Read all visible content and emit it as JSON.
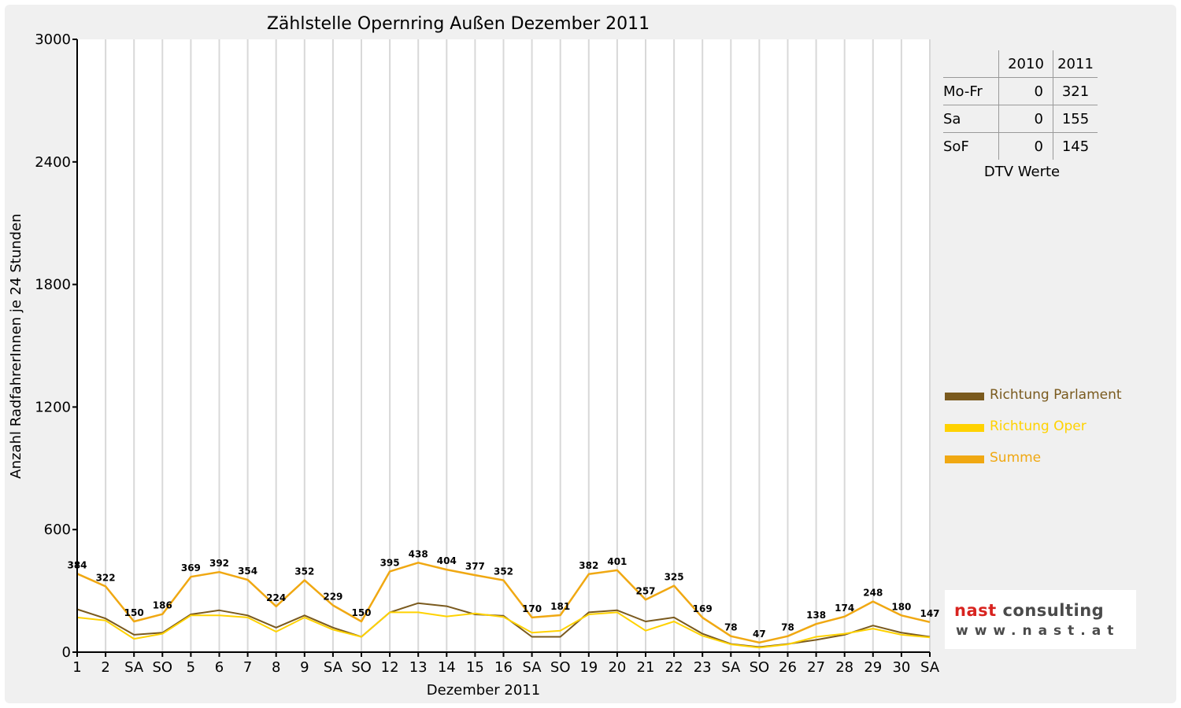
{
  "chart_data": {
    "type": "line",
    "title": "Zählstelle Opernring Außen Dezember 2011",
    "xlabel": "Dezember 2011",
    "ylabel": "Anzahl RadfahrerInnen je 24 Stunden",
    "ylim": [
      0,
      3000
    ],
    "yticks": [
      "0",
      "600",
      "1200",
      "1800",
      "2400",
      "3000"
    ],
    "grid": true,
    "legend_position": "right",
    "categories": [
      "1",
      "2",
      "SA",
      "SO",
      "5",
      "6",
      "7",
      "8",
      "9",
      "SA",
      "SO",
      "12",
      "13",
      "14",
      "15",
      "16",
      "SA",
      "SO",
      "19",
      "20",
      "21",
      "22",
      "23",
      "SA",
      "SO",
      "26",
      "27",
      "28",
      "29",
      "30",
      "SA"
    ],
    "holiday_flags": [
      false,
      false,
      false,
      true,
      false,
      false,
      false,
      true,
      false,
      false,
      true,
      false,
      false,
      false,
      false,
      false,
      false,
      true,
      false,
      false,
      false,
      false,
      false,
      false,
      true,
      true,
      false,
      false,
      false,
      false,
      false
    ],
    "series": [
      {
        "name": "Richtung Parlament",
        "color": "#7a5a1e",
        "values": [
          210,
          165,
          85,
          95,
          185,
          205,
          180,
          120,
          180,
          120,
          75,
          195,
          240,
          225,
          185,
          178,
          75,
          75,
          195,
          205,
          150,
          170,
          90,
          40,
          25,
          40,
          60,
          85,
          130,
          95,
          75
        ]
      },
      {
        "name": "Richtung Oper",
        "color": "#ffd200",
        "values": [
          170,
          155,
          65,
          90,
          180,
          180,
          170,
          100,
          170,
          110,
          75,
          195,
          195,
          175,
          190,
          172,
          95,
          105,
          185,
          195,
          105,
          150,
          80,
          38,
          22,
          38,
          75,
          90,
          115,
          85,
          72
        ]
      },
      {
        "name": "Summe",
        "color": "#f0a812",
        "values": [
          384,
          322,
          150,
          186,
          369,
          392,
          354,
          224,
          352,
          229,
          150,
          395,
          438,
          404,
          377,
          352,
          170,
          181,
          382,
          401,
          257,
          325,
          169,
          78,
          47,
          78,
          138,
          174,
          248,
          180,
          147
        ]
      }
    ],
    "data_labels": [
      "384",
      "322",
      "150",
      "186",
      "369",
      "392",
      "354",
      "224",
      "352",
      "229",
      "150",
      "395",
      "438",
      "404",
      "377",
      "352",
      "170",
      "181",
      "382",
      "401",
      "257",
      "325",
      "169",
      "78",
      "47",
      "78",
      "138",
      "174",
      "248",
      "180",
      "147"
    ]
  },
  "stats_table": {
    "headers": [
      "",
      "2010",
      "2011"
    ],
    "rows": [
      {
        "label": "Mo-Fr",
        "v2010": "0",
        "v2011": "321"
      },
      {
        "label": "Sa",
        "v2010": "0",
        "v2011": "155"
      },
      {
        "label": "SoF",
        "v2010": "0",
        "v2011": "145"
      }
    ],
    "caption": "DTV Werte"
  },
  "legend": [
    {
      "label": "Richtung Parlament",
      "color": "#7a5a1e"
    },
    {
      "label": "Richtung Oper",
      "color": "#ffd200"
    },
    {
      "label": "Summe",
      "color": "#f0a812"
    }
  ],
  "logo": {
    "line1_a": "nast",
    "line1_b": "consulting",
    "line2": "www.nast.at",
    "color_a": "#d8231f",
    "color_b": "#4a4a4a"
  }
}
